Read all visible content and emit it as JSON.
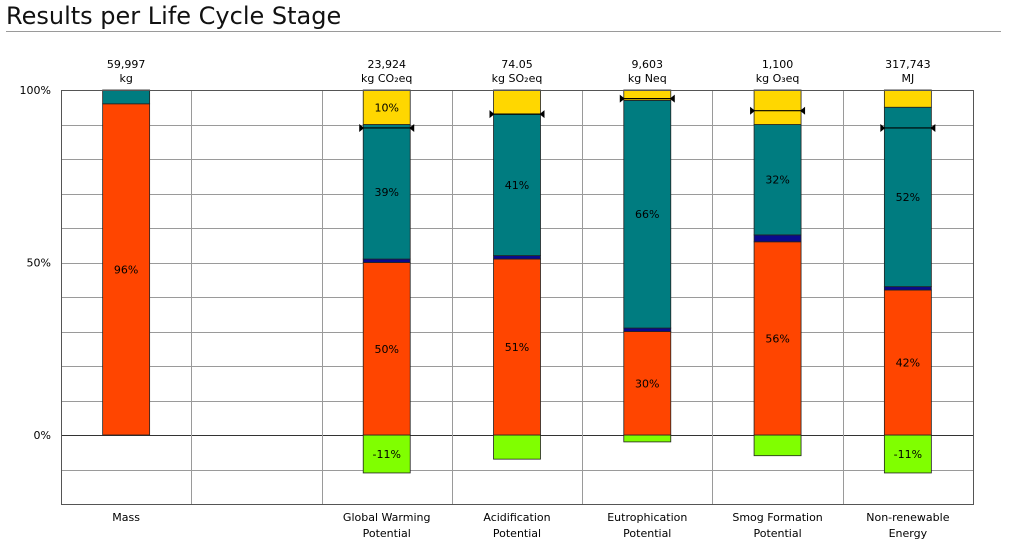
{
  "title": "Results per Life Cycle Stage",
  "chart_data": {
    "type": "bar",
    "stacked": true,
    "ylim": [
      -20,
      100
    ],
    "yticks": [
      {
        "value": 100,
        "label": "100%"
      },
      {
        "value": 50,
        "label": "50%"
      },
      {
        "value": 0,
        "label": "0%"
      }
    ],
    "grid": true,
    "colors": {
      "red": "#FF4500",
      "teal": "#007C80",
      "navy": "#0A0A8C",
      "yellow": "#FFD700",
      "green": "#80FF00",
      "outline": "#222222"
    },
    "categories": [
      {
        "id": "mass",
        "label": [
          "Mass"
        ],
        "total": "59,997",
        "unit": "kg",
        "segments": [
          {
            "color": "red",
            "value": 96,
            "label": "96%"
          },
          {
            "color": "teal",
            "value": 4,
            "label": ""
          }
        ]
      },
      {
        "id": "blank",
        "label": [],
        "total": "",
        "unit": "",
        "segments": []
      },
      {
        "id": "global-warming",
        "label": [
          "Global Warming",
          "Potential"
        ],
        "total": "23,924",
        "unit": "kg CO₂eq",
        "marker": 89,
        "segments": [
          {
            "color": "green",
            "value": -11,
            "label": "-11%"
          },
          {
            "color": "red",
            "value": 50,
            "label": "50%"
          },
          {
            "color": "navy",
            "value": 1,
            "label": ""
          },
          {
            "color": "teal",
            "value": 39,
            "label": "39%"
          },
          {
            "color": "yellow",
            "value": 10,
            "label": "10%"
          }
        ]
      },
      {
        "id": "acidification",
        "label": [
          "Acidification",
          "Potential"
        ],
        "total": "74.05",
        "unit": "kg SO₂eq",
        "marker": 93,
        "segments": [
          {
            "color": "green",
            "value": -7,
            "label": ""
          },
          {
            "color": "red",
            "value": 51,
            "label": "51%"
          },
          {
            "color": "navy",
            "value": 1,
            "label": ""
          },
          {
            "color": "teal",
            "value": 41,
            "label": "41%"
          },
          {
            "color": "yellow",
            "value": 7,
            "label": ""
          }
        ]
      },
      {
        "id": "eutrophication",
        "label": [
          "Eutrophication",
          "Potential"
        ],
        "total": "9,603",
        "unit": "kg Neq",
        "marker": 97.5,
        "segments": [
          {
            "color": "green",
            "value": -2,
            "label": ""
          },
          {
            "color": "red",
            "value": 30,
            "label": "30%"
          },
          {
            "color": "navy",
            "value": 1,
            "label": ""
          },
          {
            "color": "teal",
            "value": 66,
            "label": "66%"
          },
          {
            "color": "yellow",
            "value": 3,
            "label": ""
          }
        ]
      },
      {
        "id": "smog-formation",
        "label": [
          "Smog Formation",
          "Potential"
        ],
        "total": "1,100",
        "unit": "kg O₃eq",
        "marker": 94,
        "segments": [
          {
            "color": "green",
            "value": -6,
            "label": ""
          },
          {
            "color": "red",
            "value": 56,
            "label": "56%"
          },
          {
            "color": "navy",
            "value": 2,
            "label": ""
          },
          {
            "color": "teal",
            "value": 32,
            "label": "32%"
          },
          {
            "color": "yellow",
            "value": 10,
            "label": ""
          }
        ]
      },
      {
        "id": "non-renewable-energy",
        "label": [
          "Non-renewable",
          "Energy"
        ],
        "total": "317,743",
        "unit": "MJ",
        "marker": 89,
        "segments": [
          {
            "color": "green",
            "value": -11,
            "label": "-11%"
          },
          {
            "color": "red",
            "value": 42,
            "label": "42%"
          },
          {
            "color": "navy",
            "value": 1,
            "label": ""
          },
          {
            "color": "teal",
            "value": 52,
            "label": "52%"
          },
          {
            "color": "yellow",
            "value": 5,
            "label": ""
          }
        ]
      }
    ]
  }
}
